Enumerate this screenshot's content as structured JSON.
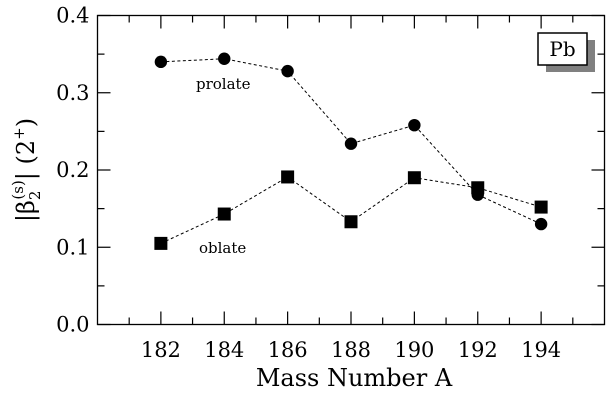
{
  "chart_data": {
    "type": "scatter",
    "x": [
      182,
      184,
      186,
      188,
      190,
      192,
      194
    ],
    "series": [
      {
        "name": "prolate",
        "marker": "circle",
        "values": [
          0.34,
          0.344,
          0.328,
          0.234,
          0.258,
          0.168,
          0.13
        ]
      },
      {
        "name": "oblate",
        "marker": "square",
        "values": [
          0.105,
          0.143,
          0.191,
          0.133,
          0.19,
          0.177,
          0.152
        ]
      }
    ],
    "xlim": [
      180,
      196
    ],
    "ylim": [
      0.0,
      0.4
    ],
    "xticks": [
      182,
      184,
      186,
      188,
      190,
      192,
      194
    ],
    "yticks": [
      0.0,
      0.1,
      0.2,
      0.3,
      0.4
    ],
    "xtick_labels": [
      "182",
      "184",
      "186",
      "188",
      "190",
      "192",
      "194"
    ],
    "ytick_labels": [
      "0.0",
      "0.1",
      "0.2",
      "0.3",
      "0.4"
    ],
    "xlabel": "Mass Number A",
    "ylabel": {
      "prefix": "|β",
      "sub": "2",
      "sup": "(s)",
      "suffix": "| (2",
      "sup2": "+",
      "close": ")"
    },
    "legend": {
      "label": "Pb",
      "placement": "top-right"
    },
    "annotations": [
      {
        "text": "prolate",
        "series": "prolate"
      },
      {
        "text": "oblate",
        "series": "oblate"
      }
    ],
    "grid": false
  }
}
